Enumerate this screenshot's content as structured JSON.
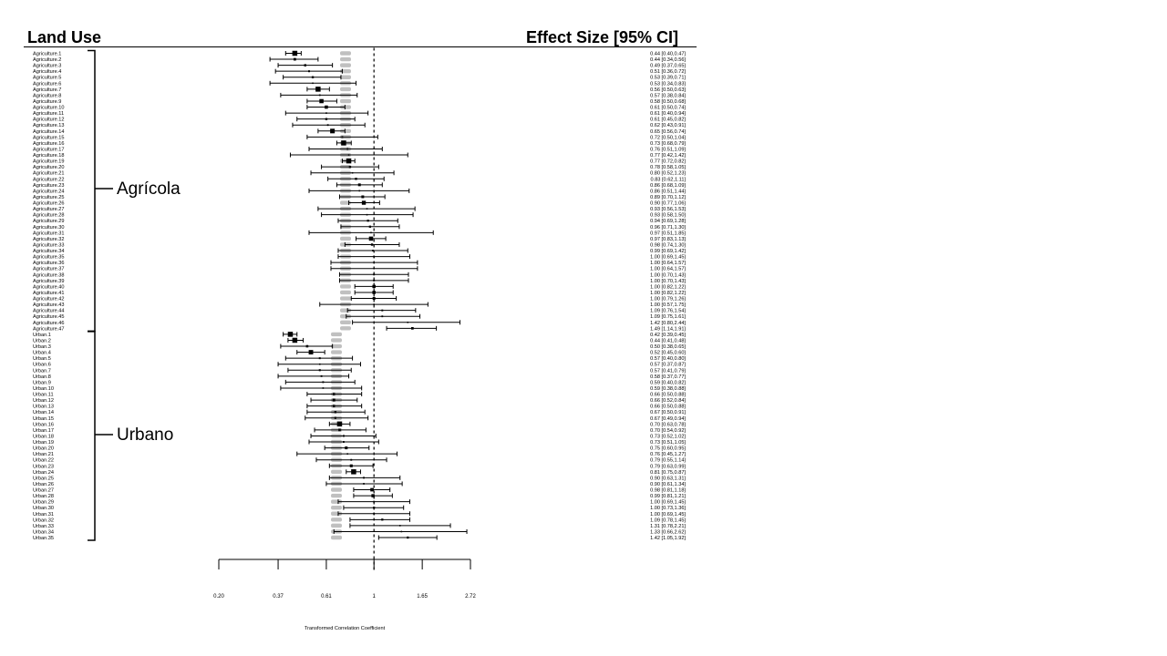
{
  "headers": {
    "left": "Land Use",
    "right": "Effect Size [95% CI]"
  },
  "groups": [
    "Agrícola",
    "Urbano"
  ],
  "chart_data": {
    "type": "forest",
    "xlabel": "Transformed Correlation Coefficient",
    "x_ticks": [
      "0.20",
      "0.37",
      "0.61",
      "1",
      "1.65",
      "2.72"
    ],
    "x_tick_values": [
      0.2,
      0.37,
      0.61,
      1,
      1.65,
      2.72
    ],
    "scale": "log",
    "reference_line": 1,
    "colors": {
      "point": "#000000",
      "ci": "#000000",
      "null_dist": "#c0c0c0",
      "ref_line": "#000000"
    },
    "rows": [
      {
        "label": "Agriculture.1",
        "group": "Agrícola",
        "est": 0.44,
        "lo": 0.4,
        "hi": 0.47,
        "text": "0.44 [0.40,0.47]"
      },
      {
        "label": "Agriculture.2",
        "group": "Agrícola",
        "est": 0.44,
        "lo": 0.34,
        "hi": 0.56,
        "text": "0.44 [0.34,0.56]"
      },
      {
        "label": "Agriculture.3",
        "group": "Agrícola",
        "est": 0.49,
        "lo": 0.37,
        "hi": 0.65,
        "text": "0.49 [0.37,0.65]"
      },
      {
        "label": "Agriculture.4",
        "group": "Agrícola",
        "est": 0.51,
        "lo": 0.36,
        "hi": 0.72,
        "text": "0.51 [0.36,0.72]"
      },
      {
        "label": "Agriculture.5",
        "group": "Agrícola",
        "est": 0.53,
        "lo": 0.39,
        "hi": 0.71,
        "text": "0.53 [0.39,0.71]"
      },
      {
        "label": "Agriculture.6",
        "group": "Agrícola",
        "est": 0.53,
        "lo": 0.34,
        "hi": 0.83,
        "text": "0.53 [0.34,0.83]"
      },
      {
        "label": "Agriculture.7",
        "group": "Agrícola",
        "est": 0.56,
        "lo": 0.5,
        "hi": 0.63,
        "text": "0.56 [0.50,0.63]"
      },
      {
        "label": "Agriculture.8",
        "group": "Agrícola",
        "est": 0.57,
        "lo": 0.38,
        "hi": 0.84,
        "text": "0.57 [0.38,0.84]"
      },
      {
        "label": "Agriculture.9",
        "group": "Agrícola",
        "est": 0.58,
        "lo": 0.5,
        "hi": 0.68,
        "text": "0.58 [0.50,0.68]"
      },
      {
        "label": "Agriculture.10",
        "group": "Agrícola",
        "est": 0.61,
        "lo": 0.5,
        "hi": 0.74,
        "text": "0.61 [0.50,0.74]"
      },
      {
        "label": "Agriculture.11",
        "group": "Agrícola",
        "est": 0.61,
        "lo": 0.4,
        "hi": 0.94,
        "text": "0.61 [0.40,0.94]"
      },
      {
        "label": "Agriculture.12",
        "group": "Agrícola",
        "est": 0.61,
        "lo": 0.45,
        "hi": 0.82,
        "text": "0.61 [0.45,0.82]"
      },
      {
        "label": "Agriculture.13",
        "group": "Agrícola",
        "est": 0.62,
        "lo": 0.43,
        "hi": 0.91,
        "text": "0.62 [0.43,0.91]"
      },
      {
        "label": "Agriculture.14",
        "group": "Agrícola",
        "est": 0.65,
        "lo": 0.56,
        "hi": 0.74,
        "text": "0.65 [0.56,0.74]"
      },
      {
        "label": "Agriculture.15",
        "group": "Agrícola",
        "est": 0.72,
        "lo": 0.5,
        "hi": 1.04,
        "text": "0.72 [0.50,1.04]"
      },
      {
        "label": "Agriculture.16",
        "group": "Agrícola",
        "est": 0.73,
        "lo": 0.68,
        "hi": 0.79,
        "text": "0.73 [0.68,0.79]"
      },
      {
        "label": "Agriculture.17",
        "group": "Agrícola",
        "est": 0.76,
        "lo": 0.51,
        "hi": 1.09,
        "text": "0.76 [0.51,1.09]"
      },
      {
        "label": "Agriculture.18",
        "group": "Agrícola",
        "est": 0.77,
        "lo": 0.42,
        "hi": 1.42,
        "text": "0.77 [0.42,1.42]"
      },
      {
        "label": "Agriculture.19",
        "group": "Agrícola",
        "est": 0.77,
        "lo": 0.72,
        "hi": 0.82,
        "text": "0.77 [0.72,0.82]"
      },
      {
        "label": "Agriculture.20",
        "group": "Agrícola",
        "est": 0.78,
        "lo": 0.58,
        "hi": 1.05,
        "text": "0.78 [0.58,1.05]"
      },
      {
        "label": "Agriculture.21",
        "group": "Agrícola",
        "est": 0.8,
        "lo": 0.52,
        "hi": 1.23,
        "text": "0.80 [0.52,1.23]"
      },
      {
        "label": "Agriculture.22",
        "group": "Agrícola",
        "est": 0.83,
        "lo": 0.62,
        "hi": 1.11,
        "text": "0.83 [0.62,1.11]"
      },
      {
        "label": "Agriculture.23",
        "group": "Agrícola",
        "est": 0.86,
        "lo": 0.68,
        "hi": 1.09,
        "text": "0.86 [0.68,1.09]"
      },
      {
        "label": "Agriculture.24",
        "group": "Agrícola",
        "est": 0.86,
        "lo": 0.51,
        "hi": 1.44,
        "text": "0.86 [0.51,1.44]"
      },
      {
        "label": "Agriculture.25",
        "group": "Agrícola",
        "est": 0.89,
        "lo": 0.7,
        "hi": 1.12,
        "text": "0.89 [0.70,1.12]"
      },
      {
        "label": "Agriculture.26",
        "group": "Agrícola",
        "est": 0.9,
        "lo": 0.77,
        "hi": 1.06,
        "text": "0.90 [0.77,1.06]"
      },
      {
        "label": "Agriculture.27",
        "group": "Agrícola",
        "est": 0.93,
        "lo": 0.56,
        "hi": 1.53,
        "text": "0.93 [0.56,1.53]"
      },
      {
        "label": "Agriculture.28",
        "group": "Agrícola",
        "est": 0.93,
        "lo": 0.58,
        "hi": 1.5,
        "text": "0.93 [0.58,1.50]"
      },
      {
        "label": "Agriculture.29",
        "group": "Agrícola",
        "est": 0.94,
        "lo": 0.69,
        "hi": 1.28,
        "text": "0.94 [0.69,1.28]"
      },
      {
        "label": "Agriculture.30",
        "group": "Agrícola",
        "est": 0.96,
        "lo": 0.71,
        "hi": 1.3,
        "text": "0.96 [0.71,1.30]"
      },
      {
        "label": "Agriculture.31",
        "group": "Agrícola",
        "est": 0.97,
        "lo": 0.51,
        "hi": 1.85,
        "text": "0.97 [0.51,1.85]"
      },
      {
        "label": "Agriculture.32",
        "group": "Agrícola",
        "est": 0.97,
        "lo": 0.83,
        "hi": 1.13,
        "text": "0.97 [0.83,1.13]"
      },
      {
        "label": "Agriculture.33",
        "group": "Agrícola",
        "est": 0.98,
        "lo": 0.74,
        "hi": 1.3,
        "text": "0.98 [0.74,1.30]"
      },
      {
        "label": "Agriculture.34",
        "group": "Agrícola",
        "est": 0.99,
        "lo": 0.69,
        "hi": 1.42,
        "text": "0.99 [0.69,1.42]"
      },
      {
        "label": "Agriculture.35",
        "group": "Agrícola",
        "est": 1.0,
        "lo": 0.69,
        "hi": 1.45,
        "text": "1.00 [0.69,1.45]"
      },
      {
        "label": "Agriculture.36",
        "group": "Agrícola",
        "est": 1.0,
        "lo": 0.64,
        "hi": 1.57,
        "text": "1.00 [0.64,1.57]"
      },
      {
        "label": "Agriculture.37",
        "group": "Agrícola",
        "est": 1.0,
        "lo": 0.64,
        "hi": 1.57,
        "text": "1.00 [0.64,1.57]"
      },
      {
        "label": "Agriculture.38",
        "group": "Agrícola",
        "est": 1.0,
        "lo": 0.7,
        "hi": 1.43,
        "text": "1.00 [0.70,1.43]"
      },
      {
        "label": "Agriculture.39",
        "group": "Agrícola",
        "est": 1.0,
        "lo": 0.7,
        "hi": 1.43,
        "text": "1.00 [0.70,1.43]"
      },
      {
        "label": "Agriculture.40",
        "group": "Agrícola",
        "est": 1.0,
        "lo": 0.82,
        "hi": 1.22,
        "text": "1.00 [0.82,1.22]"
      },
      {
        "label": "Agriculture.41",
        "group": "Agrícola",
        "est": 1.0,
        "lo": 0.82,
        "hi": 1.22,
        "text": "1.00 [0.82,1.22]"
      },
      {
        "label": "Agriculture.42",
        "group": "Agrícola",
        "est": 1.0,
        "lo": 0.79,
        "hi": 1.26,
        "text": "1.00 [0.79,1.26]"
      },
      {
        "label": "Agriculture.43",
        "group": "Agrícola",
        "est": 1.0,
        "lo": 0.57,
        "hi": 1.75,
        "text": "1.00 [0.57,1.75]"
      },
      {
        "label": "Agriculture.44",
        "group": "Agrícola",
        "est": 1.09,
        "lo": 0.76,
        "hi": 1.54,
        "text": "1.09 [0.76,1.54]"
      },
      {
        "label": "Agriculture.45",
        "group": "Agrícola",
        "est": 1.09,
        "lo": 0.75,
        "hi": 1.61,
        "text": "1.09 [0.75,1.61]"
      },
      {
        "label": "Agriculture.46",
        "group": "Agrícola",
        "est": 1.42,
        "lo": 0.8,
        "hi": 2.44,
        "text": "1.42 [0.80,2.44]"
      },
      {
        "label": "Agriculture.47",
        "group": "Agrícola",
        "est": 1.49,
        "lo": 1.14,
        "hi": 1.91,
        "text": "1.49 [1.14,1.91]"
      },
      {
        "label": "Urban.1",
        "group": "Urbano",
        "est": 0.42,
        "lo": 0.39,
        "hi": 0.45,
        "text": "0.42 [0.39,0.45]"
      },
      {
        "label": "Urban.2",
        "group": "Urbano",
        "est": 0.44,
        "lo": 0.41,
        "hi": 0.48,
        "text": "0.44 [0.41,0.48]"
      },
      {
        "label": "Urban.3",
        "group": "Urbano",
        "est": 0.5,
        "lo": 0.38,
        "hi": 0.65,
        "text": "0.50 [0.38,0.65]"
      },
      {
        "label": "Urban.4",
        "group": "Urbano",
        "est": 0.52,
        "lo": 0.45,
        "hi": 0.6,
        "text": "0.52 [0.45,0.60]"
      },
      {
        "label": "Urban.5",
        "group": "Urbano",
        "est": 0.57,
        "lo": 0.4,
        "hi": 0.8,
        "text": "0.57 [0.40,0.80]"
      },
      {
        "label": "Urban.6",
        "group": "Urbano",
        "est": 0.57,
        "lo": 0.37,
        "hi": 0.87,
        "text": "0.57 [0.37,0.87]"
      },
      {
        "label": "Urban.7",
        "group": "Urbano",
        "est": 0.57,
        "lo": 0.41,
        "hi": 0.79,
        "text": "0.57 [0.41,0.79]"
      },
      {
        "label": "Urban.8",
        "group": "Urbano",
        "est": 0.58,
        "lo": 0.37,
        "hi": 0.77,
        "text": "0.58 [0.37,0.77]"
      },
      {
        "label": "Urban.9",
        "group": "Urbano",
        "est": 0.59,
        "lo": 0.4,
        "hi": 0.82,
        "text": "0.59 [0.40,0.82]"
      },
      {
        "label": "Urban.10",
        "group": "Urbano",
        "est": 0.59,
        "lo": 0.38,
        "hi": 0.88,
        "text": "0.59 [0.38,0.88]"
      },
      {
        "label": "Urban.11",
        "group": "Urbano",
        "est": 0.66,
        "lo": 0.5,
        "hi": 0.88,
        "text": "0.66 [0.50,0.88]"
      },
      {
        "label": "Urban.12",
        "group": "Urbano",
        "est": 0.66,
        "lo": 0.52,
        "hi": 0.84,
        "text": "0.66 [0.52,0.84]"
      },
      {
        "label": "Urban.13",
        "group": "Urbano",
        "est": 0.66,
        "lo": 0.5,
        "hi": 0.88,
        "text": "0.66 [0.50,0.88]"
      },
      {
        "label": "Urban.14",
        "group": "Urbano",
        "est": 0.67,
        "lo": 0.5,
        "hi": 0.91,
        "text": "0.67 [0.50,0.91]"
      },
      {
        "label": "Urban.15",
        "group": "Urbano",
        "est": 0.67,
        "lo": 0.49,
        "hi": 0.94,
        "text": "0.67 [0.49,0.94]"
      },
      {
        "label": "Urban.16",
        "group": "Urbano",
        "est": 0.7,
        "lo": 0.63,
        "hi": 0.78,
        "text": "0.70 [0.63,0.78]"
      },
      {
        "label": "Urban.17",
        "group": "Urbano",
        "est": 0.7,
        "lo": 0.54,
        "hi": 0.92,
        "text": "0.70 [0.54,0.92]"
      },
      {
        "label": "Urban.18",
        "group": "Urbano",
        "est": 0.73,
        "lo": 0.52,
        "hi": 1.02,
        "text": "0.73 [0.52,1.02]"
      },
      {
        "label": "Urban.19",
        "group": "Urbano",
        "est": 0.73,
        "lo": 0.51,
        "hi": 1.05,
        "text": "0.73 [0.51,1.05]"
      },
      {
        "label": "Urban.20",
        "group": "Urbano",
        "est": 0.75,
        "lo": 0.6,
        "hi": 0.95,
        "text": "0.75 [0.60,0.95]"
      },
      {
        "label": "Urban.21",
        "group": "Urbano",
        "est": 0.76,
        "lo": 0.45,
        "hi": 1.27,
        "text": "0.76 [0.45,1.27]"
      },
      {
        "label": "Urban.22",
        "group": "Urbano",
        "est": 0.79,
        "lo": 0.55,
        "hi": 1.14,
        "text": "0.79 [0.55,1.14]"
      },
      {
        "label": "Urban.23",
        "group": "Urbano",
        "est": 0.79,
        "lo": 0.63,
        "hi": 0.99,
        "text": "0.79 [0.63,0.99]"
      },
      {
        "label": "Urban.24",
        "group": "Urbano",
        "est": 0.81,
        "lo": 0.75,
        "hi": 0.87,
        "text": "0.81 [0.75,0.87]"
      },
      {
        "label": "Urban.25",
        "group": "Urbano",
        "est": 0.9,
        "lo": 0.63,
        "hi": 1.31,
        "text": "0.90 [0.63,1.31]"
      },
      {
        "label": "Urban.26",
        "group": "Urbano",
        "est": 0.9,
        "lo": 0.61,
        "hi": 1.34,
        "text": "0.90 [0.61,1.34]"
      },
      {
        "label": "Urban.27",
        "group": "Urbano",
        "est": 0.98,
        "lo": 0.81,
        "hi": 1.18,
        "text": "0.98 [0.81,1.18]"
      },
      {
        "label": "Urban.28",
        "group": "Urbano",
        "est": 0.99,
        "lo": 0.81,
        "hi": 1.21,
        "text": "0.99 [0.81,1.21]"
      },
      {
        "label": "Urban.29",
        "group": "Urbano",
        "est": 1.0,
        "lo": 0.69,
        "hi": 1.45,
        "text": "1.00 [0.69,1.45]"
      },
      {
        "label": "Urban.30",
        "group": "Urbano",
        "est": 1.0,
        "lo": 0.73,
        "hi": 1.36,
        "text": "1.00 [0.73,1.36]"
      },
      {
        "label": "Urban.31",
        "group": "Urbano",
        "est": 1.0,
        "lo": 0.69,
        "hi": 1.45,
        "text": "1.00 [0.69,1.45]"
      },
      {
        "label": "Urban.32",
        "group": "Urbano",
        "est": 1.09,
        "lo": 0.78,
        "hi": 1.45,
        "text": "1.09 [0.78,1.45]"
      },
      {
        "label": "Urban.33",
        "group": "Urbano",
        "est": 1.31,
        "lo": 0.78,
        "hi": 2.21,
        "text": "1.31 [0.78,2.21]"
      },
      {
        "label": "Urban.34",
        "group": "Urbano",
        "est": 1.33,
        "lo": 0.66,
        "hi": 2.62,
        "text": "1.33 [0.66,2.62]"
      },
      {
        "label": "Urban.35",
        "group": "Urbano",
        "est": 1.42,
        "lo": 1.05,
        "hi": 1.92,
        "text": "1.42 [1.05,1.92]"
      }
    ]
  }
}
